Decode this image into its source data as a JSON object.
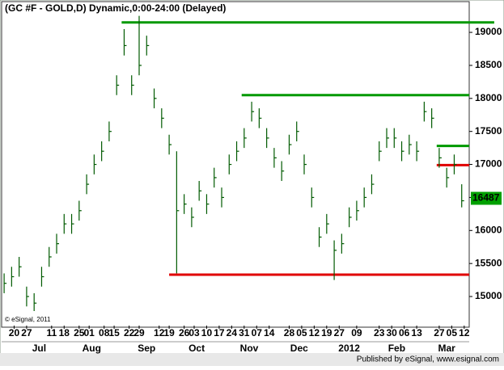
{
  "chart_data": {
    "type": "hlc",
    "title": "(GC #F - GOLD,D) Dynamic,0:00-24:00 (Delayed)",
    "copyright": "© eSignal, 2011",
    "footer": "Published by eSignal, www.esignal.com",
    "color": "#005a00",
    "x": [
      1,
      4,
      7,
      10,
      13,
      16,
      19,
      22,
      25,
      28,
      31,
      34,
      37,
      40,
      43,
      46,
      49,
      52,
      55,
      58,
      61,
      64,
      67,
      70,
      73,
      76,
      79,
      82,
      85,
      88,
      91,
      94,
      97,
      100,
      103,
      106,
      109,
      112,
      115,
      118,
      121,
      124,
      127,
      130,
      133,
      136,
      139,
      142,
      145,
      148,
      151,
      154,
      157,
      160,
      163,
      166,
      169,
      172,
      175,
      178,
      181,
      184
    ],
    "high": [
      15350,
      15450,
      15600,
      15150,
      15050,
      15450,
      15750,
      15950,
      16250,
      16250,
      16450,
      16850,
      17150,
      17350,
      17650,
      18350,
      19050,
      18350,
      19250,
      18950,
      18150,
      17850,
      17450,
      17200,
      16550,
      16350,
      16750,
      16550,
      16950,
      16650,
      17150,
      17350,
      17550,
      17950,
      17850,
      17550,
      17250,
      17050,
      17450,
      17650,
      17150,
      16650,
      16050,
      16250,
      15850,
      15950,
      16350,
      16450,
      16650,
      16850,
      17350,
      17550,
      17550,
      17350,
      17450,
      17350,
      17950,
      17850,
      17250,
      16950,
      17150,
      16700
    ],
    "low": [
      15050,
      15150,
      15300,
      14850,
      14780,
      15150,
      15450,
      15650,
      15950,
      15950,
      16150,
      16550,
      16850,
      17050,
      17350,
      18050,
      18650,
      18050,
      18350,
      18650,
      17850,
      17550,
      17150,
      15350,
      16250,
      16050,
      16450,
      16250,
      16650,
      16350,
      16850,
      17050,
      17250,
      17650,
      17550,
      17250,
      16950,
      16750,
      17150,
      17350,
      16850,
      16350,
      15750,
      15950,
      15250,
      15650,
      16050,
      16150,
      16350,
      16550,
      17050,
      17250,
      17250,
      17050,
      17150,
      17050,
      17650,
      17550,
      16950,
      16650,
      16850,
      16350
    ],
    "close": [
      15200,
      15300,
      15450,
      15000,
      14900,
      15300,
      15600,
      15800,
      16100,
      16100,
      16300,
      16700,
      17000,
      17200,
      17500,
      18200,
      18800,
      18200,
      18500,
      18800,
      18000,
      17700,
      17300,
      16300,
      16400,
      16200,
      16600,
      16400,
      16800,
      16500,
      17000,
      17200,
      17400,
      17800,
      17700,
      17400,
      17100,
      16900,
      17300,
      17500,
      17000,
      16500,
      15900,
      16100,
      15700,
      15800,
      16200,
      16300,
      16500,
      16700,
      17200,
      17400,
      17400,
      17200,
      17300,
      17200,
      17800,
      17700,
      17100,
      16800,
      17000,
      16450
    ],
    "last_price": 16487,
    "last_price_color": "#00a000",
    "levels": [
      {
        "value": 19150,
        "color": "#009900",
        "x": [
          48,
          197
        ]
      },
      {
        "value": 18050,
        "color": "#009900",
        "x": [
          96,
          187
        ]
      },
      {
        "value": 17280,
        "color": "#009900",
        "x": [
          174,
          187
        ]
      },
      {
        "value": 16990,
        "color": "#e00000",
        "x": [
          174,
          187
        ]
      },
      {
        "value": 15330,
        "color": "#e00000",
        "x": [
          67,
          187
        ]
      }
    ],
    "xlim": [
      0,
      187
    ],
    "ylim": [
      14560,
      19270
    ],
    "yticks": [
      15000,
      15500,
      16000,
      16500,
      17000,
      17500,
      18000,
      18500,
      19000
    ],
    "xticks": [
      {
        "value": 5,
        "label": "20"
      },
      {
        "value": 10,
        "label": "27"
      },
      {
        "value": 20,
        "label": "11"
      },
      {
        "value": 25,
        "label": "18"
      },
      {
        "value": 31,
        "label": "25"
      },
      {
        "value": 35,
        "label": "01"
      },
      {
        "value": 41,
        "label": "08"
      },
      {
        "value": 45,
        "label": "15"
      },
      {
        "value": 51,
        "label": "22"
      },
      {
        "value": 55,
        "label": "29"
      },
      {
        "value": 63,
        "label": "12"
      },
      {
        "value": 67,
        "label": "19"
      },
      {
        "value": 73,
        "label": "26"
      },
      {
        "value": 77,
        "label": "03"
      },
      {
        "value": 82,
        "label": "10"
      },
      {
        "value": 87,
        "label": "17"
      },
      {
        "value": 92,
        "label": "24"
      },
      {
        "value": 97,
        "label": "31"
      },
      {
        "value": 102,
        "label": "07"
      },
      {
        "value": 107,
        "label": "14"
      },
      {
        "value": 115,
        "label": "28"
      },
      {
        "value": 120,
        "label": "05"
      },
      {
        "value": 125,
        "label": "12"
      },
      {
        "value": 130,
        "label": "19"
      },
      {
        "value": 135,
        "label": "27"
      },
      {
        "value": 142,
        "label": "09"
      },
      {
        "value": 151,
        "label": "23"
      },
      {
        "value": 156,
        "label": "30"
      },
      {
        "value": 161,
        "label": "06"
      },
      {
        "value": 166,
        "label": "13"
      },
      {
        "value": 175,
        "label": "27"
      },
      {
        "value": 180,
        "label": "05"
      },
      {
        "value": 185,
        "label": "12"
      }
    ],
    "month_labels": [
      {
        "value": 15,
        "label": "Jul"
      },
      {
        "value": 36,
        "label": "Aug"
      },
      {
        "value": 58,
        "label": "Sep"
      },
      {
        "value": 78,
        "label": "Oct"
      },
      {
        "value": 99,
        "label": "Nov"
      },
      {
        "value": 119,
        "label": "Dec"
      },
      {
        "value": 139,
        "label": "2012"
      },
      {
        "value": 158,
        "label": "Feb"
      },
      {
        "value": 178,
        "label": "Mar"
      }
    ]
  }
}
